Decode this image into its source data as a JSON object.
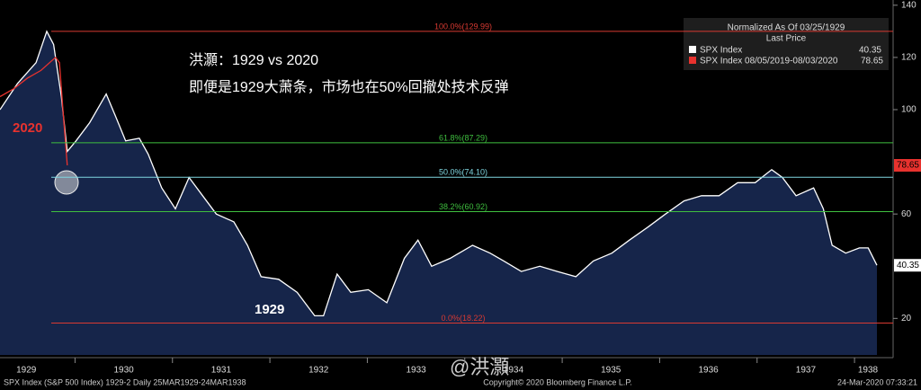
{
  "chart_data": {
    "type": "line",
    "title": "洪灝：1929 vs 2020",
    "subtitle": "即便是1929大萧条，市场也在50%回撤处技术反弹",
    "annotations": [
      "2020",
      "1929"
    ],
    "legend": {
      "title": "Normalized As Of 03/25/1929",
      "header": "Last Price"
    },
    "series": [
      {
        "name": "SPX Index",
        "color": "#ffffff",
        "fill": "#16254a",
        "last_price": 40.35,
        "x": [
          1929.23,
          1929.41,
          1929.6,
          1929.71,
          1929.78,
          1929.86,
          1929.92,
          1930.01,
          1930.15,
          1930.32,
          1930.41,
          1930.52,
          1930.66,
          1930.75,
          1930.89,
          1931.03,
          1931.17,
          1931.31,
          1931.45,
          1931.63,
          1931.77,
          1931.91,
          1932.09,
          1932.28,
          1932.46,
          1932.55,
          1932.69,
          1932.83,
          1933.01,
          1933.2,
          1933.38,
          1933.52,
          1933.66,
          1933.85,
          1934.08,
          1934.26,
          1934.4,
          1934.58,
          1934.77,
          1934.95,
          1935.14,
          1935.32,
          1935.51,
          1935.69,
          1935.88,
          1936.06,
          1936.25,
          1936.43,
          1936.61,
          1936.8,
          1936.98,
          1937.15,
          1937.26,
          1937.4,
          1937.58,
          1937.68,
          1937.77,
          1937.91,
          1938.05,
          1938.14,
          1938.23
        ],
        "values": [
          100,
          110,
          118,
          130,
          125,
          105,
          84,
          88,
          95,
          106,
          98,
          88,
          89,
          83,
          70,
          62,
          74,
          67,
          60,
          57,
          48,
          36,
          35,
          30,
          21,
          21,
          37,
          30,
          31,
          26,
          43,
          50,
          40,
          43,
          48,
          45,
          42,
          38,
          40,
          38,
          36,
          42,
          45,
          50,
          55,
          60,
          65,
          67,
          67,
          72,
          72,
          77,
          74,
          67,
          70,
          62,
          48,
          45,
          47,
          47,
          40.35
        ]
      },
      {
        "name": "SPX Index 08/05/2019-08/03/2020",
        "color": "#e8322e",
        "last_price": 78.65,
        "x": [
          1929.23,
          1929.37,
          1929.51,
          1929.65,
          1929.74,
          1929.8,
          1929.84,
          1929.88,
          1929.92
        ],
        "values": [
          105,
          108,
          112,
          115,
          118,
          120,
          118,
          98,
          78.65
        ]
      }
    ],
    "levels": [
      {
        "label": "100.0%(129.99)",
        "value": 129.99,
        "color": "#d93a32"
      },
      {
        "label": "61.8%(87.29)",
        "value": 87.29,
        "color": "#3fbf3f"
      },
      {
        "label": "50.0%(74.10)",
        "value": 74.1,
        "color": "#7fd6e0"
      },
      {
        "label": "38.2%(60.92)",
        "value": 60.92,
        "color": "#3fbf3f"
      },
      {
        "label": "0.0%(18.22)",
        "value": 18.22,
        "color": "#d93a32"
      }
    ],
    "xlim": [
      1929.23,
      1938.23
    ],
    "xticks": [
      1929,
      1930,
      1931,
      1932,
      1933,
      1934,
      1935,
      1936,
      1937,
      1938
    ],
    "ylim": [
      6,
      142
    ],
    "yticks": [
      20,
      60,
      100,
      120,
      140
    ],
    "footer": {
      "left": "SPX Index (S&P 500 Index) 1929-2  Daily 25MAR1929-24MAR1938",
      "center": "Copyright© 2020 Bloomberg Finance L.P.",
      "right": "24-Mar-2020 07:33:21",
      "watermark": "@洪灝"
    }
  }
}
